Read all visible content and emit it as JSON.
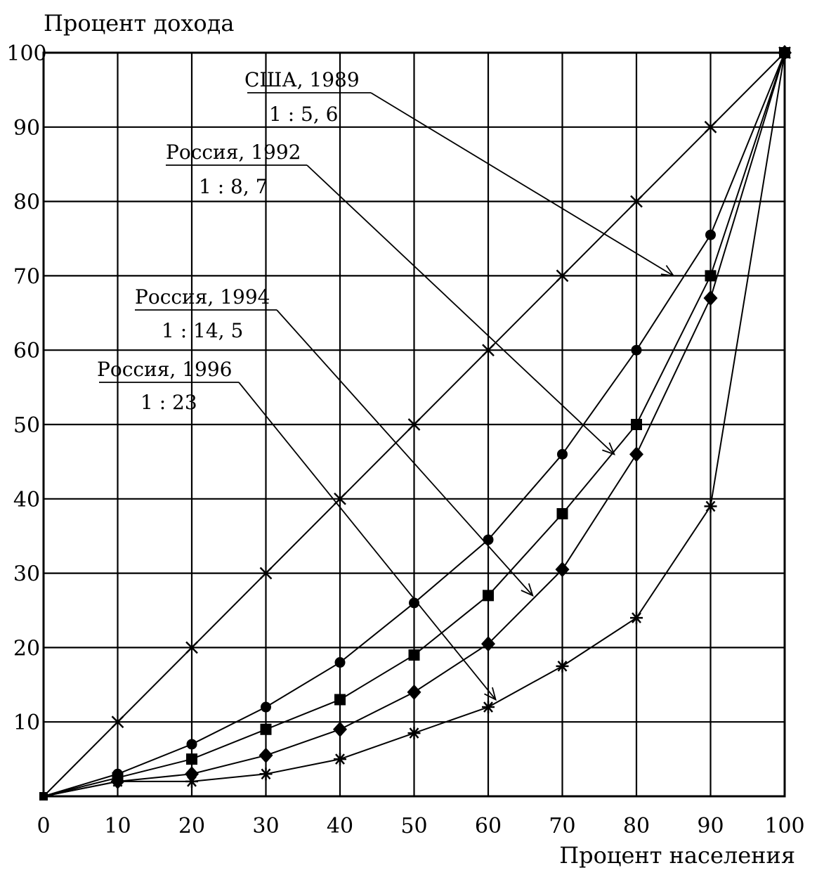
{
  "chart_data": {
    "type": "line",
    "ylabel": "Процент дохода",
    "xlabel": "Процент населения",
    "x_ticks": [
      "0",
      "10",
      "20",
      "30",
      "40",
      "50",
      "60",
      "70",
      "80",
      "90",
      "100"
    ],
    "y_ticks": [
      "10",
      "20",
      "30",
      "40",
      "50",
      "60",
      "70",
      "80",
      "90",
      "100"
    ],
    "xlim": [
      0,
      100
    ],
    "ylim": [
      0,
      100
    ],
    "grid": true,
    "series": [
      {
        "marker": "cross",
        "x": [
          0,
          10,
          20,
          30,
          40,
          50,
          60,
          70,
          80,
          90,
          100
        ],
        "y": [
          0,
          10,
          20,
          30,
          40,
          50,
          60,
          70,
          80,
          90,
          100
        ]
      },
      {
        "marker": "circle",
        "x": [
          0,
          10,
          20,
          30,
          40,
          50,
          60,
          70,
          80,
          90,
          100
        ],
        "y": [
          0,
          3,
          7,
          12,
          18,
          26,
          34.5,
          46,
          60,
          75.5,
          100
        ]
      },
      {
        "marker": "square",
        "x": [
          0,
          10,
          20,
          30,
          40,
          50,
          60,
          70,
          80,
          90,
          100
        ],
        "y": [
          0,
          2.5,
          5,
          9,
          13,
          19,
          27,
          38,
          50,
          70,
          100
        ]
      },
      {
        "marker": "diamond",
        "x": [
          0,
          10,
          20,
          30,
          40,
          50,
          60,
          70,
          80,
          90,
          100
        ],
        "y": [
          0,
          2,
          3,
          5.5,
          9,
          14,
          20.5,
          30.5,
          46,
          67,
          100
        ]
      },
      {
        "marker": "star",
        "x": [
          0,
          10,
          20,
          30,
          40,
          50,
          60,
          70,
          80,
          90,
          100
        ],
        "y": [
          0,
          2,
          2,
          3,
          5,
          8.5,
          12,
          17.5,
          24,
          39,
          100
        ]
      }
    ],
    "annotations": [
      {
        "text": "США, 1989",
        "ratio": "1 : 5, 6",
        "arrow_to": [
          85,
          70
        ]
      },
      {
        "text": "Россия, 1992",
        "ratio": "1 : 8, 7",
        "arrow_to": [
          77,
          46
        ]
      },
      {
        "text": "Россия, 1994",
        "ratio": "1 : 14, 5",
        "arrow_to": [
          66,
          27
        ]
      },
      {
        "text": "Россия, 1996",
        "ratio": "1 : 23",
        "arrow_to": [
          61,
          13
        ]
      }
    ]
  }
}
